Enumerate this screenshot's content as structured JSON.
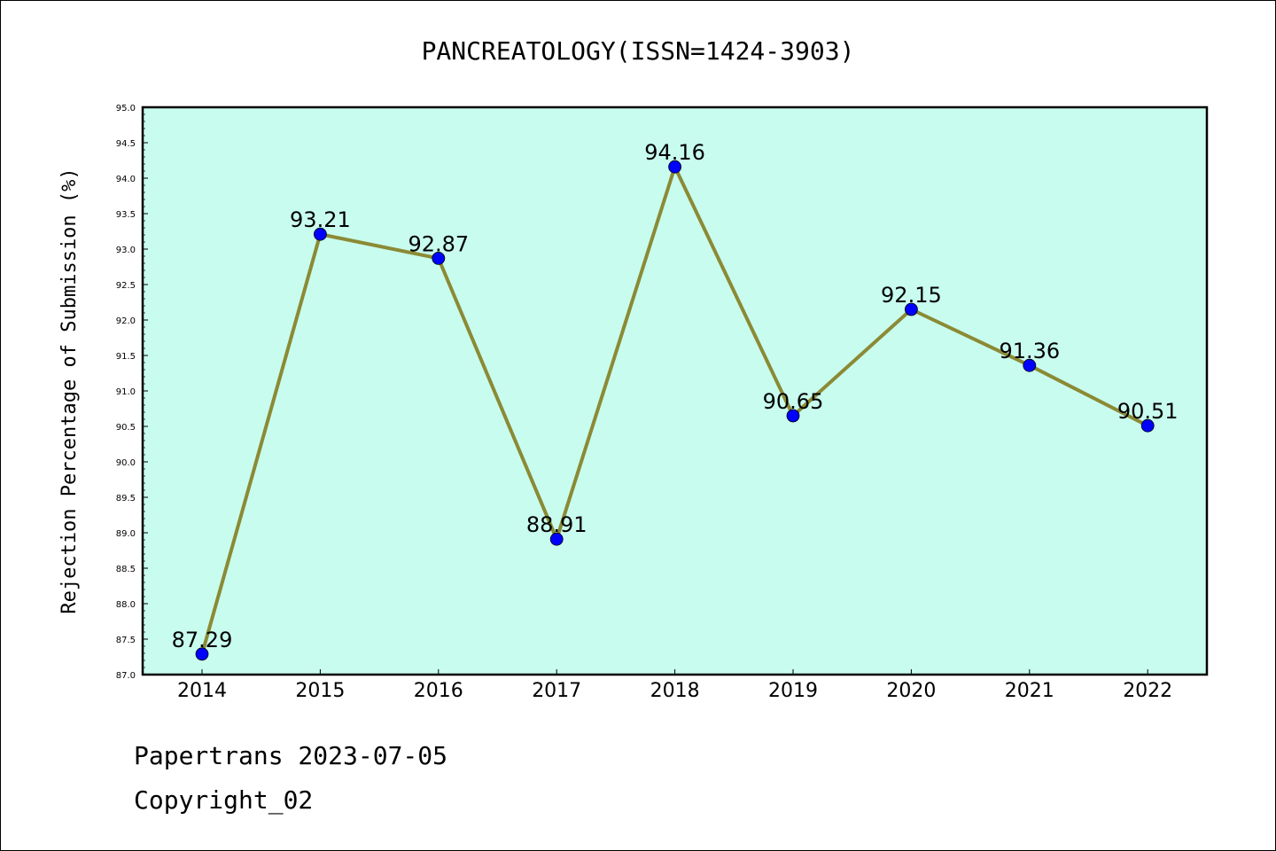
{
  "chart_data": {
    "type": "line",
    "title": "PANCREATOLOGY(ISSN=1424-3903)",
    "xlabel": "",
    "ylabel": "Rejection Percentage of Submission (%)",
    "categories": [
      "2014",
      "2015",
      "2016",
      "2017",
      "2018",
      "2019",
      "2020",
      "2021",
      "2022"
    ],
    "values": [
      87.29,
      93.21,
      92.87,
      88.91,
      94.16,
      90.65,
      92.15,
      91.36,
      90.51
    ],
    "data_labels": [
      "87.29",
      "93.21",
      "92.87",
      "88.91",
      "94.16",
      "90.65",
      "92.15",
      "91.36",
      "90.51"
    ],
    "ylim": [
      87.0,
      95.0
    ],
    "yticks": [
      "87.0",
      "87.5",
      "88.0",
      "88.5",
      "89.0",
      "89.5",
      "90.0",
      "90.5",
      "91.0",
      "91.5",
      "92.0",
      "92.5",
      "93.0",
      "93.5",
      "94.0",
      "94.5",
      "95.0"
    ],
    "grid": false,
    "colors": {
      "plot_background": "#c8fcee",
      "line": "#8b8a35",
      "marker": "#0000ff",
      "frame": "#000000"
    }
  },
  "footer": {
    "line1": "Papertrans 2023-07-05",
    "line2": "Copyright_02"
  }
}
